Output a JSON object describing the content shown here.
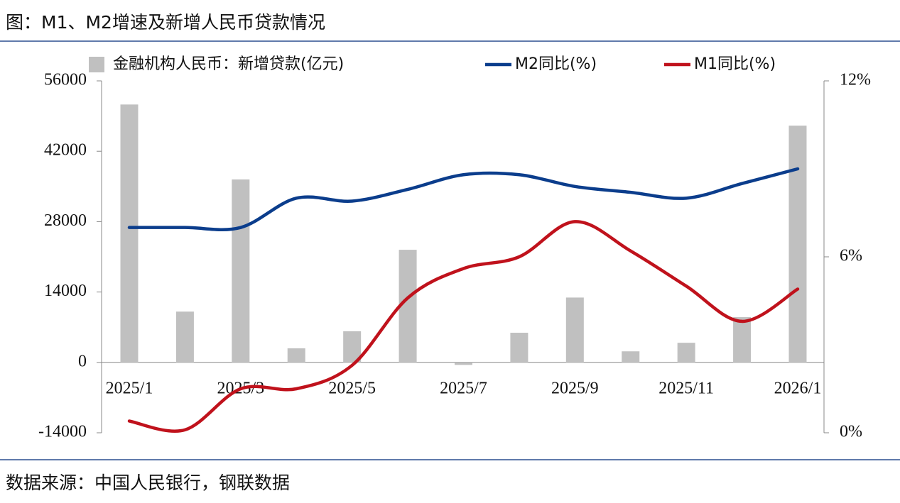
{
  "chart_data": {
    "type": "bar",
    "title": "图：M1、M2增速及新增人民币贷款情况",
    "source": "数据来源：中国人民银行，钢联数据",
    "categories": [
      "2025/1",
      null,
      "2025/3",
      null,
      "2025/5",
      null,
      "2025/7",
      null,
      "2025/9",
      null,
      "2025/11",
      null,
      "2026/1"
    ],
    "series": [
      {
        "name": "金融机构人民币：新增贷款(亿元)",
        "type": "bar",
        "color": "#c0c0c0",
        "values": [
          51300,
          10100,
          36400,
          2800,
          6200,
          22400,
          -500,
          5900,
          12900,
          2200,
          3900,
          9000,
          47100
        ]
      },
      {
        "name": "M2同比(%)",
        "type": "line",
        "axis": "y2",
        "color": "#0b3d8c",
        "values": [
          7.0,
          7.0,
          7.0,
          8.0,
          7.9,
          8.3,
          8.8,
          8.8,
          8.4,
          8.2,
          8.0,
          8.5,
          9.0
        ]
      },
      {
        "name": "M1同比(%)",
        "type": "line",
        "axis": "y2",
        "color": "#c0121c",
        "values": [
          0.4,
          0.1,
          1.5,
          1.5,
          2.3,
          4.6,
          5.6,
          6.0,
          7.2,
          6.2,
          5.0,
          3.8,
          4.9
        ]
      }
    ],
    "ylim": [
      -14000,
      56000
    ],
    "yticks": [
      -14000,
      0,
      14000,
      28000,
      42000,
      56000
    ],
    "y2lim": [
      0,
      12
    ],
    "y2ticks": [
      {
        "value": 0,
        "label": "0%"
      },
      {
        "value": 6,
        "label": "6%"
      },
      {
        "value": 12,
        "label": "12%"
      }
    ],
    "legend": "top"
  }
}
